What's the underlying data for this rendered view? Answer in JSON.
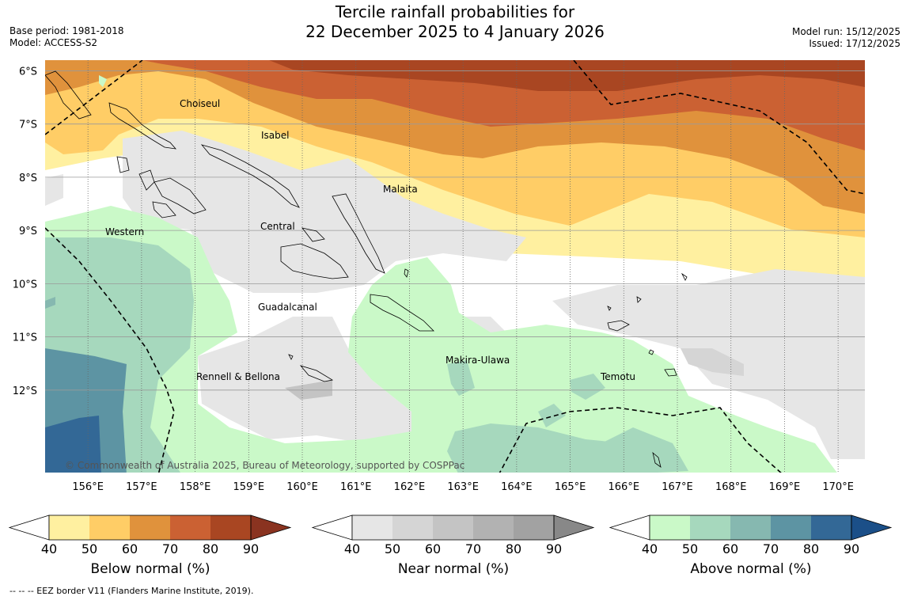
{
  "header": {
    "title_line1": "Tercile rainfall probabilities for",
    "title_line2": "22 December 2025 to 4 January 2026",
    "base_period": "Base period: 1981-2018",
    "model": "Model: ACCESS-S2",
    "model_run": "Model run: 15/12/2025",
    "issued": "Issued: 17/12/2025"
  },
  "map": {
    "lat_labels": [
      "6°S",
      "7°S",
      "8°S",
      "9°S",
      "10°S",
      "11°S",
      "12°S"
    ],
    "lon_labels": [
      "156°E",
      "157°E",
      "158°E",
      "159°E",
      "160°E",
      "161°E",
      "162°E",
      "163°E",
      "164°E",
      "165°E",
      "166°E",
      "167°E",
      "168°E",
      "169°E",
      "170°E"
    ],
    "lat_range": [
      -13.55,
      -5.8
    ],
    "lon_range": [
      155.2,
      170.5
    ],
    "provinces": [
      "Choiseul",
      "Isabel",
      "Malaita",
      "Central",
      "Western",
      "Guadalcanal",
      "Makira-Ulawa",
      "Temotu",
      "Rennell & Bellona"
    ],
    "copyright": "© Commonwealth of Australia 2025, Bureau of Meteorology, supported by COSPPac"
  },
  "colorbars": [
    {
      "label": "Below normal (%)",
      "ticks": [
        "40",
        "50",
        "60",
        "70",
        "80",
        "90"
      ],
      "colors": [
        "#fff0a0",
        "#ffcd66",
        "#e0923c",
        "#cb6133",
        "#a94622",
        "#8a3320"
      ]
    },
    {
      "label": "Near normal (%)",
      "ticks": [
        "40",
        "50",
        "60",
        "70",
        "80",
        "90"
      ],
      "colors": [
        "#e6e6e6",
        "#d5d5d5",
        "#c4c4c4",
        "#b2b2b2",
        "#a2a2a2",
        "#888888"
      ]
    },
    {
      "label": "Above normal (%)",
      "ticks": [
        "40",
        "50",
        "60",
        "70",
        "80",
        "90"
      ],
      "colors": [
        "#caf9c8",
        "#a6d8bd",
        "#86b8b0",
        "#5d94a3",
        "#336896",
        "#1b4f88"
      ]
    }
  ],
  "footer": {
    "eez_note": "--  --  -- EEZ border V11 (Flanders Marine Institute, 2019)."
  }
}
